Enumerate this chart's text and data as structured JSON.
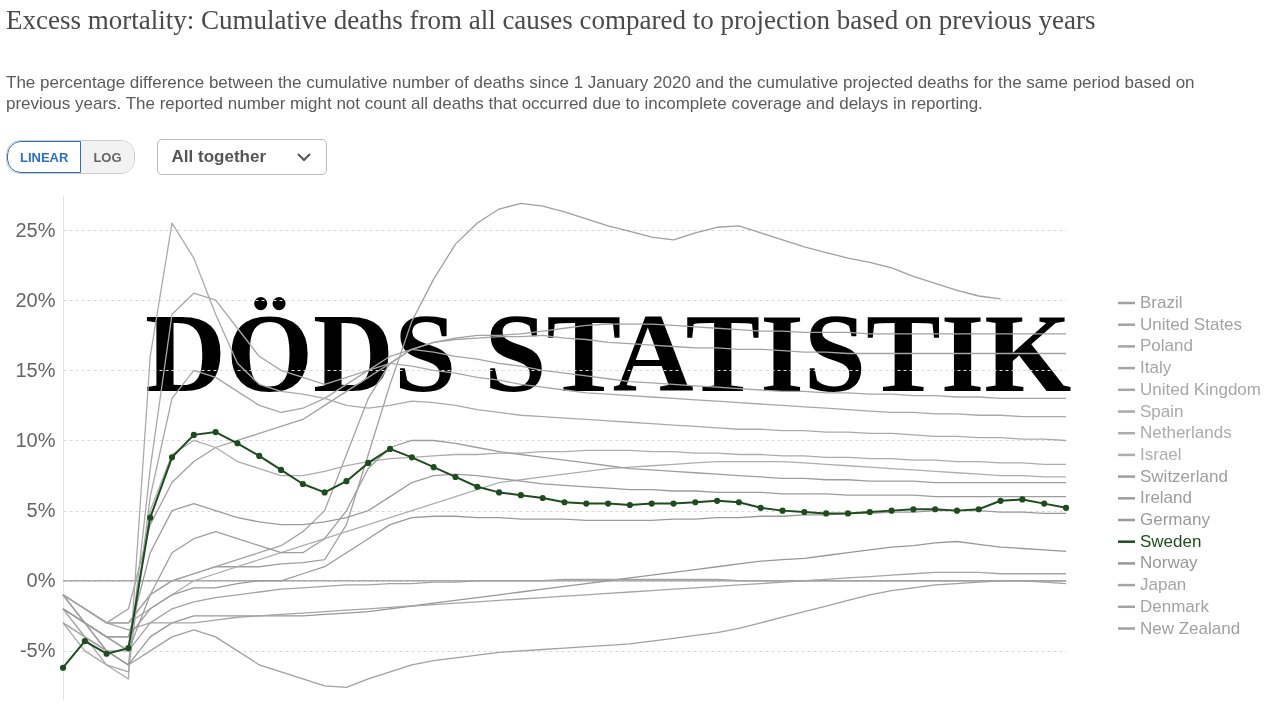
{
  "chart_data": {
    "type": "line",
    "title": "Excess mortality: Cumulative deaths from all causes compared to projection based on previous years",
    "subtitle": "The percentage difference between the cumulative number of deaths since 1 January 2020 and the cumulative projected deaths for the same period based on previous years. The reported number might not count all deaths that occurred due to incomplete coverage and delays in reporting.",
    "annotations": [
      "DÖDS STATISTIK",
      "LINEAR",
      "LOG",
      "All together"
    ],
    "categories": [
      null,
      null,
      null,
      null,
      null,
      null,
      null,
      null,
      null,
      null,
      null,
      null,
      null,
      null,
      null,
      null,
      null,
      null,
      null,
      null,
      null,
      null,
      null,
      null,
      null,
      null,
      null,
      null,
      null,
      null,
      null,
      null,
      null,
      null,
      null,
      null,
      null,
      null,
      null,
      null,
      null,
      null,
      null,
      null,
      null,
      null,
      null
    ],
    "ylim": [
      -8.5,
      27.5
    ],
    "yticks": [
      {
        "value": -5,
        "label": "-5%"
      },
      {
        "value": 0,
        "label": "0%"
      },
      {
        "value": 5,
        "label": "5%"
      },
      {
        "value": 10,
        "label": "10%"
      },
      {
        "value": 15,
        "label": "15%"
      },
      {
        "value": 20,
        "label": "20%"
      },
      {
        "value": 25,
        "label": "25%"
      }
    ],
    "grid": "y",
    "legend": "right",
    "tick_labels": "y",
    "marker": "none",
    "ref_lines": [
      {
        "axis": "y",
        "value": 0,
        "color": "#aaaaaa"
      }
    ],
    "series": [
      {
        "name": "Brazil",
        "color": "#a0a0a0",
        "values": [
          -1,
          -2,
          -3,
          -3,
          -1,
          0,
          0.5,
          1,
          1,
          1,
          1.2,
          1.3,
          1.5,
          4,
          9,
          14,
          18.5,
          21.5,
          24,
          25.5,
          26.5,
          26.9,
          26.7,
          26.3,
          25.8,
          25.3,
          24.9,
          24.5,
          24.3,
          24.8,
          25.2,
          25.3,
          24.8,
          24.3,
          23.8,
          23.4,
          23,
          22.7,
          22.3,
          21.7,
          21.2,
          20.7,
          20.3,
          20.1,
          null,
          null,
          null
        ]
      },
      {
        "name": "United States",
        "color": "#a2a2a2",
        "values": [
          -1,
          -2,
          -3,
          -2,
          4,
          7,
          8.5,
          9.5,
          10,
          10.5,
          11,
          11.5,
          12.5,
          13.5,
          14.5,
          15.5,
          16.5,
          17,
          17.3,
          17.5,
          17.5,
          17.6,
          17.8,
          18,
          18.2,
          18.3,
          18.3,
          18.3,
          18.2,
          18.1,
          18,
          17.9,
          17.8,
          17.8,
          17.7,
          17.7,
          17.7,
          17.6,
          17.6,
          17.6,
          17.6,
          17.6,
          17.6,
          17.6,
          17.6,
          17.6,
          17.6
        ]
      },
      {
        "name": "Poland",
        "color": "#a4a4a4",
        "values": [
          -1,
          -2,
          -3,
          -3,
          -1,
          0,
          0.5,
          1,
          1.5,
          2,
          2.5,
          3.5,
          5,
          9,
          13,
          15.5,
          16.5,
          17,
          17.2,
          17.3,
          17.4,
          17.4,
          17.5,
          17.3,
          17.2,
          17,
          16.9,
          16.8,
          16.7,
          16.6,
          16.6,
          16.5,
          16.5,
          16.4,
          16.3,
          16.3,
          16.2,
          16.2,
          16.2,
          16.2,
          16.2,
          16.2,
          16.2,
          16.2,
          16.2,
          16.2,
          16.2
        ]
      },
      {
        "name": "Italy",
        "color": "#a6a6a6",
        "values": [
          -3,
          -5,
          -6,
          -6.5,
          6,
          13,
          15,
          14.5,
          13.5,
          12.5,
          12,
          12.3,
          13,
          14,
          15,
          16,
          16.5,
          16.3,
          16,
          15.8,
          15.5,
          15.3,
          15,
          14.8,
          14.6,
          14.4,
          14.2,
          14.1,
          14,
          13.9,
          13.8,
          13.7,
          13.6,
          13.5,
          13.5,
          13.4,
          13.4,
          13.3,
          13.3,
          13.2,
          13.2,
          13.1,
          13.1,
          13,
          13,
          13,
          13
        ]
      },
      {
        "name": "United Kingdom",
        "color": "#a8a8a8",
        "values": [
          -1,
          -3,
          -5,
          -6,
          8,
          19,
          20.5,
          20,
          18,
          16,
          15,
          14.5,
          14,
          14.5,
          15,
          15.5,
          15.3,
          15,
          14.8,
          14.5,
          14.3,
          14,
          13.8,
          13.6,
          13.4,
          13.3,
          13.2,
          13.1,
          13,
          12.9,
          12.8,
          12.7,
          12.6,
          12.5,
          12.4,
          12.3,
          12.2,
          12.1,
          12,
          12,
          11.9,
          11.9,
          11.8,
          11.8,
          11.7,
          11.7,
          11.7
        ]
      },
      {
        "name": "Spain",
        "color": "#aaaaaa",
        "values": [
          -2,
          -4,
          -6,
          -7,
          16,
          25.5,
          23,
          19,
          15.5,
          14,
          13.5,
          13.3,
          13,
          12.5,
          12.3,
          12.5,
          12.8,
          12.7,
          12.5,
          12.2,
          12,
          11.8,
          11.7,
          11.6,
          11.5,
          11.4,
          11.3,
          11.2,
          11.1,
          11,
          10.9,
          10.8,
          10.8,
          10.7,
          10.7,
          10.6,
          10.6,
          10.5,
          10.5,
          10.4,
          10.3,
          10.3,
          10.2,
          10.2,
          10.1,
          10.1,
          10
        ]
      },
      {
        "name": "Netherlands",
        "color": "#acacac",
        "values": [
          -2,
          -4,
          -5,
          -5,
          5,
          9,
          10,
          9.5,
          8.5,
          8,
          7.5,
          7.5,
          7.8,
          8.2,
          8.5,
          8.7,
          8.8,
          8.9,
          9,
          9,
          9.1,
          9.1,
          9.2,
          9.2,
          9.3,
          9.3,
          9.3,
          9.2,
          9.2,
          9.1,
          9.1,
          9,
          9,
          8.9,
          8.9,
          8.8,
          8.8,
          8.7,
          8.7,
          8.6,
          8.6,
          8.5,
          8.5,
          8.4,
          8.4,
          8.3,
          8.3
        ]
      },
      {
        "name": "Israel",
        "color": "#aeaeae",
        "values": [
          -1,
          -2,
          -3,
          -3,
          -2,
          -1,
          0,
          0.5,
          1,
          1.5,
          2,
          2.5,
          3,
          3.5,
          4,
          4.5,
          5,
          5.5,
          6,
          6.5,
          7,
          7.2,
          7.4,
          7.6,
          7.8,
          8,
          8.1,
          8.2,
          8.3,
          8.4,
          8.5,
          8.5,
          8.5,
          8.5,
          8.4,
          8.3,
          8.2,
          8.1,
          8,
          7.9,
          7.8,
          7.7,
          7.6,
          7.5,
          7.5,
          7.4,
          7.4
        ]
      },
      {
        "name": "Switzerland",
        "color": "#9e9e9e",
        "values": [
          -2,
          -3,
          -4,
          -5,
          -1,
          2,
          3,
          3.5,
          3,
          2.5,
          2,
          2,
          3,
          5,
          8,
          9.5,
          10,
          10,
          9.8,
          9.5,
          9.2,
          9,
          8.8,
          8.6,
          8.4,
          8.2,
          8,
          7.9,
          7.8,
          7.7,
          7.6,
          7.5,
          7.4,
          7.3,
          7.3,
          7.2,
          7.2,
          7.1,
          7.1,
          7.1,
          7,
          7,
          7,
          7,
          7,
          7,
          7
        ]
      },
      {
        "name": "Ireland",
        "color": "#9c9c9c",
        "values": [
          -2,
          -3,
          -4,
          -4,
          2,
          5,
          5.5,
          5,
          4.5,
          4.2,
          4,
          4,
          4.2,
          4.5,
          5,
          6,
          7,
          7.5,
          7.6,
          7.5,
          7.3,
          7.1,
          6.9,
          6.8,
          6.7,
          6.6,
          6.5,
          6.5,
          6.4,
          6.4,
          6.3,
          6.3,
          6.3,
          6.2,
          6.2,
          6.2,
          6.1,
          6.1,
          6.1,
          6.1,
          6,
          6,
          6,
          6,
          6,
          6,
          6
        ]
      },
      {
        "name": "Germany",
        "color": "#9a9a9a",
        "values": [
          -2,
          -3,
          -4,
          -4,
          -2,
          -1,
          -0.5,
          -0.5,
          -0.2,
          0,
          0,
          0.5,
          1,
          2,
          3,
          4,
          4.5,
          4.6,
          4.6,
          4.5,
          4.5,
          4.4,
          4.4,
          4.4,
          4.3,
          4.3,
          4.3,
          4.3,
          4.4,
          4.4,
          4.5,
          4.5,
          4.6,
          4.6,
          4.7,
          4.7,
          4.8,
          4.8,
          4.9,
          4.9,
          5,
          5,
          5,
          4.9,
          4.9,
          4.8,
          4.8
        ]
      },
      {
        "name": "Sweden",
        "color": "#1d4d1d",
        "marker": "circle",
        "values": [
          -6.2,
          -4.3,
          -5.2,
          -4.8,
          4.5,
          8.8,
          10.4,
          10.6,
          9.8,
          8.9,
          7.9,
          6.9,
          6.3,
          7.1,
          8.4,
          9.4,
          8.8,
          8.1,
          7.4,
          6.7,
          6.3,
          6.1,
          5.9,
          5.6,
          5.5,
          5.5,
          5.4,
          5.5,
          5.5,
          5.6,
          5.7,
          5.6,
          5.2,
          5,
          4.9,
          4.8,
          4.8,
          4.9,
          5,
          5.1,
          5.1,
          5,
          5.1,
          5.7,
          5.8,
          5.5,
          5.2
        ]
      },
      {
        "name": "Norway",
        "color": "#989898",
        "values": [
          -1,
          -3,
          -5,
          -6,
          -4,
          -3,
          -2.5,
          -2.5,
          -2.5,
          -2.5,
          -2.5,
          -2.5,
          -2.4,
          -2.3,
          -2.2,
          -2,
          -1.8,
          -1.6,
          -1.4,
          -1.2,
          -1,
          -0.8,
          -0.6,
          -0.4,
          -0.2,
          0,
          0.2,
          0.4,
          0.6,
          0.8,
          1,
          1.2,
          1.4,
          1.5,
          1.6,
          1.8,
          2,
          2.2,
          2.4,
          2.5,
          2.7,
          2.8,
          2.6,
          2.4,
          2.3,
          2.2,
          2.1
        ]
      },
      {
        "name": "Japan",
        "color": "#a5a5a5",
        "values": [
          -1,
          -2,
          -3,
          -3.5,
          -3,
          -3,
          -3,
          -2.8,
          -2.6,
          -2.5,
          -2.4,
          -2.3,
          -2.2,
          -2.1,
          -2,
          -1.9,
          -1.8,
          -1.7,
          -1.6,
          -1.5,
          -1.4,
          -1.3,
          -1.2,
          -1.1,
          -1,
          -0.9,
          -0.8,
          -0.7,
          -0.6,
          -0.5,
          -0.4,
          -0.3,
          -0.2,
          -0.1,
          0,
          0.1,
          0.2,
          0.3,
          0.4,
          0.5,
          0.6,
          0.6,
          0.6,
          0.5,
          0.5,
          0.5,
          0.5
        ]
      },
      {
        "name": "Denmark",
        "color": "#a3a3a3",
        "values": [
          -1,
          -3,
          -4,
          -5,
          -3,
          -2,
          -1.5,
          -1.2,
          -1,
          -0.8,
          -0.6,
          -0.5,
          -0.4,
          -0.3,
          -0.3,
          -0.2,
          -0.2,
          -0.1,
          -0.1,
          0,
          0,
          0,
          0,
          0.1,
          0.1,
          0.1,
          0.1,
          0.1,
          0.1,
          0.1,
          0.1,
          0,
          0,
          0,
          0,
          0,
          0,
          0,
          0,
          0,
          0,
          0,
          0,
          0,
          0,
          0,
          0
        ]
      },
      {
        "name": "New Zealand",
        "color": "#a1a1a1",
        "values": [
          -3,
          -4,
          -5,
          -6,
          -5,
          -4,
          -3.5,
          -4,
          -5,
          -6,
          -6.5,
          -7,
          -7.5,
          -7.6,
          -7,
          -6.5,
          -6,
          -5.7,
          -5.5,
          -5.3,
          -5.1,
          -5,
          -4.9,
          -4.8,
          -4.7,
          -4.6,
          -4.5,
          -4.3,
          -4.1,
          -3.9,
          -3.7,
          -3.4,
          -3,
          -2.6,
          -2.2,
          -1.8,
          -1.4,
          -1,
          -0.7,
          -0.5,
          -0.3,
          -0.2,
          -0.1,
          0,
          0,
          -0.1,
          -0.2
        ]
      }
    ]
  }
}
